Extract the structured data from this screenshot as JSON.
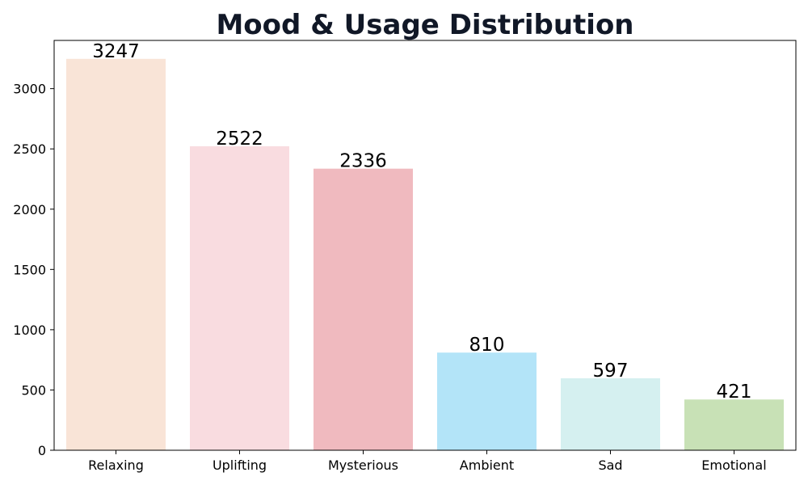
{
  "chart_data": {
    "type": "bar",
    "title": "Mood & Usage Distribution",
    "xlabel": "",
    "ylabel": "",
    "categories": [
      "Relaxing",
      "Uplifting",
      "Mysterious",
      "Ambient",
      "Sad",
      "Emotional"
    ],
    "values": [
      3247,
      2522,
      2336,
      810,
      597,
      421
    ],
    "colors": [
      "#f9e4d7",
      "#f9dce0",
      "#f0babf",
      "#b3e4f8",
      "#d5f0f0",
      "#c8e1b6"
    ],
    "ylim": [
      0,
      3400
    ],
    "yticks": [
      0,
      500,
      1000,
      1500,
      2000,
      2500,
      3000
    ],
    "grid": false,
    "legend": "none",
    "data_labels_shown": true
  }
}
